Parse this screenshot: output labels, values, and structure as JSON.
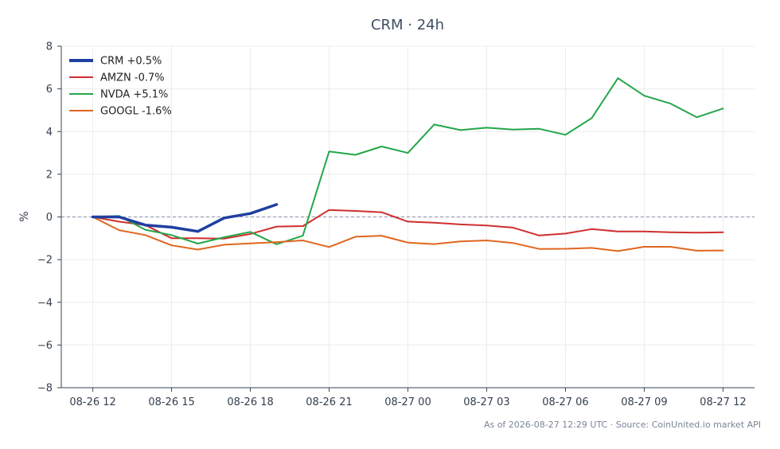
{
  "chart_data": {
    "type": "line",
    "title": "CRM · 24h",
    "xlabel": "",
    "ylabel": "%",
    "ylim": [
      -8,
      8
    ],
    "yticks": [
      -8,
      -6,
      -4,
      -2,
      0,
      2,
      4,
      6,
      8
    ],
    "ytick_labels": [
      "−8",
      "−6",
      "−4",
      "−2",
      "0",
      "2",
      "4",
      "6",
      "8"
    ],
    "xlim": [
      -1.2,
      25.2
    ],
    "xticks": [
      0,
      3,
      6,
      9,
      12,
      15,
      18,
      21,
      24
    ],
    "xtick_labels": [
      "08-26 12",
      "08-26 15",
      "08-26 18",
      "08-26 21",
      "08-27 00",
      "08-27 03",
      "08-27 06",
      "08-27 09",
      "08-27 12"
    ],
    "x_unit": "hours from 08-26 12",
    "grid": true,
    "zero_line": true,
    "legend_position": "top-left",
    "footer": "As of 2026-08-27 12:29 UTC · Source: CoinUnited.io market API",
    "series": [
      {
        "name": "CRM +0.5%",
        "color": "#1f3fa0",
        "x": [
          0,
          1,
          2,
          3,
          4,
          5,
          6,
          7
        ],
        "values": [
          0.0,
          0.0,
          -0.38,
          -0.48,
          -0.68,
          -0.05,
          0.16,
          0.58
        ]
      },
      {
        "name": "AMZN -0.7%",
        "color": "#cf2f2f",
        "x": [
          0,
          1,
          2,
          3,
          4,
          5,
          6,
          7,
          8,
          9,
          10,
          11,
          12,
          13,
          14,
          15,
          16,
          17,
          18,
          19,
          20,
          21,
          22,
          23,
          24
        ],
        "values": [
          0.0,
          -0.22,
          -0.38,
          -1.0,
          -1.0,
          -1.02,
          -0.8,
          -0.45,
          -0.43,
          0.33,
          0.28,
          0.22,
          -0.22,
          -0.27,
          -0.35,
          -0.4,
          -0.5,
          -0.87,
          -0.78,
          -0.57,
          -0.68,
          -0.68,
          -0.72,
          -0.74,
          -0.72
        ]
      },
      {
        "name": "NVDA +5.1%",
        "color": "#24a64a",
        "x": [
          0,
          1,
          2,
          3,
          4,
          5,
          6,
          7,
          8,
          9,
          10,
          11,
          12,
          13,
          14,
          15,
          16,
          17,
          18,
          19,
          20,
          21,
          22,
          23,
          24
        ],
        "values": [
          0.0,
          0.05,
          -0.6,
          -0.85,
          -1.25,
          -0.95,
          -0.7,
          -1.28,
          -0.88,
          3.07,
          2.91,
          3.3,
          3.0,
          4.33,
          4.07,
          4.18,
          4.09,
          4.13,
          3.85,
          4.63,
          6.5,
          5.68,
          5.31,
          4.67,
          5.08
        ]
      },
      {
        "name": "GOOGL -1.6%",
        "color": "#e0661f",
        "x": [
          0,
          1,
          2,
          3,
          4,
          5,
          6,
          7,
          8,
          9,
          10,
          11,
          12,
          13,
          14,
          15,
          16,
          17,
          18,
          19,
          20,
          21,
          22,
          23,
          24
        ],
        "values": [
          0.0,
          -0.62,
          -0.85,
          -1.33,
          -1.53,
          -1.3,
          -1.24,
          -1.18,
          -1.1,
          -1.41,
          -0.93,
          -0.88,
          -1.2,
          -1.27,
          -1.15,
          -1.1,
          -1.22,
          -1.5,
          -1.49,
          -1.45,
          -1.6,
          -1.4,
          -1.4,
          -1.58,
          -1.57
        ]
      }
    ]
  }
}
